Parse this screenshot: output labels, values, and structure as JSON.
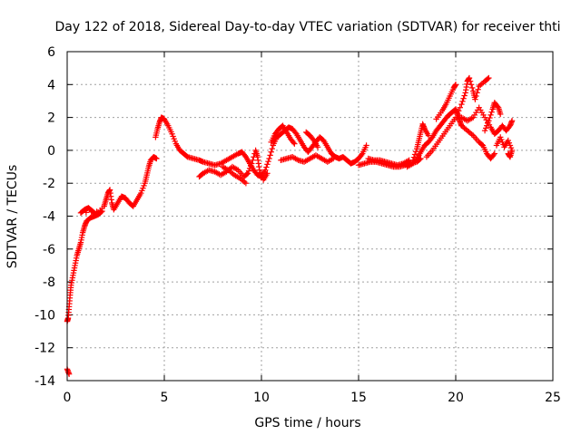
{
  "chart_data": {
    "type": "scatter",
    "title": "Day 122 of 2018, Sidereal Day-to-day VTEC variation (SDTVAR) for receiver thti",
    "xlabel": "GPS time / hours",
    "ylabel": "SDTVAR / TECUs",
    "xlim": [
      0,
      25
    ],
    "ylim": [
      -14,
      6
    ],
    "xticks": [
      0,
      5,
      10,
      15,
      20,
      25
    ],
    "yticks": [
      -14,
      -12,
      -10,
      -8,
      -6,
      -4,
      -2,
      0,
      2,
      4,
      6
    ],
    "grid": true,
    "marker": "+",
    "color": "#ff0000",
    "series": [
      {
        "name": "SDTVAR",
        "points": [
          [
            0.0,
            -13.3
          ],
          [
            0.1,
            -13.6
          ],
          [
            0.0,
            -10.4
          ],
          [
            0.05,
            -10.2
          ],
          [
            0.1,
            -9.5
          ],
          [
            0.15,
            -8.8
          ],
          [
            0.2,
            -8.2
          ],
          [
            0.3,
            -7.6
          ],
          [
            0.4,
            -7.0
          ],
          [
            0.5,
            -6.4
          ],
          [
            0.6,
            -6.0
          ],
          [
            0.7,
            -5.6
          ],
          [
            0.8,
            -5.0
          ],
          [
            0.9,
            -4.6
          ],
          [
            1.0,
            -4.3
          ],
          [
            1.2,
            -4.1
          ],
          [
            1.4,
            -4.0
          ],
          [
            1.6,
            -3.9
          ],
          [
            1.8,
            -3.7
          ],
          [
            0.7,
            -3.8
          ],
          [
            0.9,
            -3.6
          ],
          [
            1.1,
            -3.5
          ],
          [
            1.3,
            -3.7
          ],
          [
            1.5,
            -3.9
          ],
          [
            1.9,
            -3.4
          ],
          [
            2.0,
            -3.0
          ],
          [
            2.1,
            -2.6
          ],
          [
            2.2,
            -2.4
          ],
          [
            2.3,
            -3.2
          ],
          [
            2.4,
            -3.6
          ],
          [
            2.6,
            -3.2
          ],
          [
            2.8,
            -2.8
          ],
          [
            3.0,
            -2.9
          ],
          [
            3.2,
            -3.2
          ],
          [
            3.4,
            -3.4
          ],
          [
            3.6,
            -3.0
          ],
          [
            3.8,
            -2.6
          ],
          [
            4.0,
            -2.0
          ],
          [
            4.1,
            -1.5
          ],
          [
            4.2,
            -1.0
          ],
          [
            4.3,
            -0.6
          ],
          [
            4.45,
            -0.4
          ],
          [
            4.6,
            -0.5
          ],
          [
            4.55,
            0.8
          ],
          [
            4.65,
            1.3
          ],
          [
            4.75,
            1.7
          ],
          [
            4.85,
            2.0
          ],
          [
            5.0,
            1.9
          ],
          [
            5.2,
            1.5
          ],
          [
            5.4,
            1.0
          ],
          [
            5.6,
            0.4
          ],
          [
            5.8,
            0.0
          ],
          [
            6.0,
            -0.2
          ],
          [
            6.2,
            -0.4
          ],
          [
            6.5,
            -0.5
          ],
          [
            6.8,
            -0.6
          ],
          [
            7.0,
            -0.7
          ],
          [
            7.3,
            -0.8
          ],
          [
            7.6,
            -0.9
          ],
          [
            7.9,
            -0.8
          ],
          [
            8.2,
            -0.6
          ],
          [
            8.5,
            -0.4
          ],
          [
            8.8,
            -0.2
          ],
          [
            9.0,
            -0.1
          ],
          [
            9.2,
            -0.4
          ],
          [
            9.4,
            -0.8
          ],
          [
            9.6,
            -1.2
          ],
          [
            9.8,
            -1.5
          ],
          [
            10.0,
            -1.6
          ],
          [
            10.2,
            -1.2
          ],
          [
            10.4,
            -0.5
          ],
          [
            10.6,
            0.3
          ],
          [
            10.8,
            0.8
          ],
          [
            11.0,
            1.0
          ],
          [
            11.2,
            1.2
          ],
          [
            11.4,
            1.4
          ],
          [
            11.6,
            1.3
          ],
          [
            11.8,
            1.0
          ],
          [
            12.0,
            0.6
          ],
          [
            12.2,
            0.2
          ],
          [
            12.4,
            -0.1
          ],
          [
            12.6,
            0.2
          ],
          [
            12.8,
            0.5
          ],
          [
            13.0,
            0.8
          ],
          [
            13.2,
            0.6
          ],
          [
            13.4,
            0.2
          ],
          [
            13.6,
            -0.2
          ],
          [
            13.8,
            -0.4
          ],
          [
            14.0,
            -0.5
          ],
          [
            14.2,
            -0.4
          ],
          [
            14.4,
            -0.6
          ],
          [
            14.6,
            -0.8
          ],
          [
            14.8,
            -0.7
          ],
          [
            15.0,
            -0.5
          ],
          [
            15.2,
            -0.2
          ],
          [
            15.4,
            0.3
          ],
          [
            6.8,
            -1.6
          ],
          [
            7.0,
            -1.4
          ],
          [
            7.3,
            -1.2
          ],
          [
            7.6,
            -1.3
          ],
          [
            7.9,
            -1.5
          ],
          [
            8.2,
            -1.3
          ],
          [
            8.5,
            -1.0
          ],
          [
            8.8,
            -1.2
          ],
          [
            9.1,
            -1.6
          ],
          [
            9.3,
            -1.4
          ],
          [
            9.5,
            -0.8
          ],
          [
            9.7,
            0.0
          ],
          [
            9.8,
            -0.4
          ],
          [
            9.9,
            -1.2
          ],
          [
            10.1,
            -1.8
          ],
          [
            10.3,
            -1.4
          ],
          [
            8.0,
            -1.0
          ],
          [
            8.3,
            -1.2
          ],
          [
            8.6,
            -1.5
          ],
          [
            8.9,
            -1.7
          ],
          [
            9.2,
            -2.0
          ],
          [
            10.5,
            0.5
          ],
          [
            10.7,
            1.0
          ],
          [
            10.9,
            1.3
          ],
          [
            11.1,
            1.5
          ],
          [
            11.3,
            1.1
          ],
          [
            11.5,
            0.7
          ],
          [
            11.7,
            0.4
          ],
          [
            11.0,
            -0.6
          ],
          [
            11.3,
            -0.5
          ],
          [
            11.6,
            -0.4
          ],
          [
            11.9,
            -0.6
          ],
          [
            12.2,
            -0.7
          ],
          [
            12.5,
            -0.5
          ],
          [
            12.8,
            -0.3
          ],
          [
            13.1,
            -0.5
          ],
          [
            13.4,
            -0.7
          ],
          [
            13.7,
            -0.5
          ],
          [
            12.3,
            1.1
          ],
          [
            12.5,
            0.9
          ],
          [
            12.7,
            0.6
          ],
          [
            12.9,
            0.2
          ],
          [
            15.0,
            -0.9
          ],
          [
            15.3,
            -0.8
          ],
          [
            15.6,
            -0.7
          ],
          [
            15.9,
            -0.7
          ],
          [
            16.2,
            -0.8
          ],
          [
            16.5,
            -0.9
          ],
          [
            16.8,
            -1.0
          ],
          [
            17.1,
            -1.0
          ],
          [
            17.4,
            -0.9
          ],
          [
            17.7,
            -0.8
          ],
          [
            18.0,
            -0.7
          ],
          [
            18.2,
            -0.5
          ],
          [
            15.5,
            -0.5
          ],
          [
            15.8,
            -0.6
          ],
          [
            16.1,
            -0.6
          ],
          [
            16.4,
            -0.7
          ],
          [
            16.7,
            -0.8
          ],
          [
            17.0,
            -0.9
          ],
          [
            17.3,
            -0.8
          ],
          [
            17.6,
            -0.6
          ],
          [
            17.5,
            -1.0
          ],
          [
            17.8,
            -0.8
          ],
          [
            18.0,
            -0.5
          ],
          [
            18.2,
            -0.1
          ],
          [
            18.4,
            0.3
          ],
          [
            18.6,
            0.5
          ],
          [
            18.8,
            0.8
          ],
          [
            19.0,
            1.2
          ],
          [
            19.2,
            1.5
          ],
          [
            19.4,
            1.8
          ],
          [
            19.6,
            2.1
          ],
          [
            19.8,
            2.3
          ],
          [
            20.0,
            2.5
          ],
          [
            20.1,
            2.2
          ],
          [
            20.2,
            1.8
          ],
          [
            20.3,
            1.5
          ],
          [
            17.8,
            -0.6
          ],
          [
            18.0,
            0.1
          ],
          [
            18.1,
            0.6
          ],
          [
            18.2,
            1.1
          ],
          [
            18.3,
            1.6
          ],
          [
            18.4,
            1.3
          ],
          [
            18.6,
            0.9
          ],
          [
            18.5,
            -0.4
          ],
          [
            18.8,
            0.0
          ],
          [
            19.1,
            0.5
          ],
          [
            19.4,
            1.0
          ],
          [
            19.7,
            1.5
          ],
          [
            20.0,
            2.0
          ],
          [
            20.3,
            2.8
          ],
          [
            20.5,
            3.5
          ],
          [
            20.6,
            4.2
          ],
          [
            20.7,
            4.4
          ],
          [
            20.9,
            3.6
          ],
          [
            21.0,
            3.1
          ],
          [
            21.2,
            3.9
          ],
          [
            21.5,
            4.2
          ],
          [
            21.7,
            4.4
          ],
          [
            19.0,
            1.9
          ],
          [
            19.3,
            2.4
          ],
          [
            19.5,
            2.8
          ],
          [
            19.7,
            3.3
          ],
          [
            19.9,
            3.8
          ],
          [
            20.0,
            4.0
          ],
          [
            20.3,
            1.5
          ],
          [
            20.6,
            1.2
          ],
          [
            20.9,
            0.9
          ],
          [
            21.2,
            0.5
          ],
          [
            21.4,
            0.3
          ],
          [
            21.6,
            -0.2
          ],
          [
            21.8,
            -0.5
          ],
          [
            22.0,
            -0.2
          ],
          [
            20.0,
            2.0
          ],
          [
            20.3,
            2.0
          ],
          [
            20.6,
            1.8
          ],
          [
            20.9,
            2.0
          ],
          [
            21.2,
            2.6
          ],
          [
            21.5,
            2.0
          ],
          [
            21.8,
            1.4
          ],
          [
            22.0,
            1.0
          ],
          [
            22.2,
            1.2
          ],
          [
            22.4,
            1.5
          ],
          [
            22.6,
            1.2
          ],
          [
            22.8,
            1.5
          ],
          [
            22.9,
            1.8
          ],
          [
            21.5,
            1.2
          ],
          [
            21.7,
            1.8
          ],
          [
            21.9,
            2.5
          ],
          [
            22.0,
            2.9
          ],
          [
            22.2,
            2.6
          ],
          [
            22.3,
            2.2
          ],
          [
            22.1,
            0.3
          ],
          [
            22.3,
            0.8
          ],
          [
            22.5,
            0.2
          ],
          [
            22.7,
            0.6
          ],
          [
            22.9,
            0.0
          ],
          [
            22.8,
            -0.4
          ],
          [
            22.7,
            -0.2
          ]
        ]
      }
    ]
  }
}
